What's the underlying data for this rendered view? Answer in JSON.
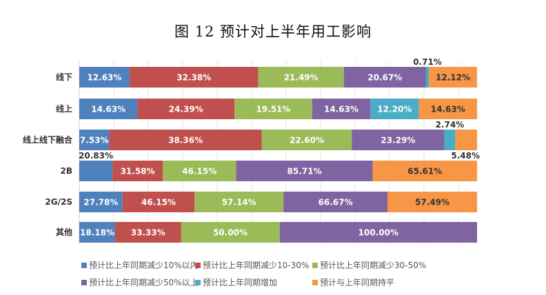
{
  "chart_data": {
    "type": "bar",
    "orientation": "horizontal",
    "stacked": true,
    "normalized": true,
    "title": "图 12  预计对上半年用工影响",
    "categories": [
      "线下",
      "线上",
      "线上线下融合",
      "2B",
      "2G/2S",
      "其他"
    ],
    "series": [
      {
        "name": "预计比上年同期减少10%以内",
        "color": "#4f81bd",
        "values": [
          12.63,
          14.63,
          7.53,
          20.83,
          27.78,
          18.18
        ]
      },
      {
        "name": "预计比上年同期减少10-30%",
        "color": "#c0504d",
        "values": [
          32.38,
          24.39,
          38.36,
          31.58,
          46.15,
          33.33
        ]
      },
      {
        "name": "预计比上年同期减少30-50%",
        "color": "#9bbb59",
        "values": [
          21.49,
          19.51,
          22.6,
          46.15,
          57.14,
          50.0
        ]
      },
      {
        "name": "预计比上年同期减少50%以上",
        "color": "#8064a2",
        "values": [
          20.67,
          14.63,
          23.29,
          85.71,
          66.67,
          100.0
        ]
      },
      {
        "name": "预计比上年同期增加",
        "color": "#4bacc6",
        "values": [
          0.71,
          12.2,
          2.74,
          null,
          null,
          null
        ]
      },
      {
        "name": "预计与上年同期持平",
        "color": "#f79646",
        "values": [
          12.12,
          14.63,
          5.48,
          65.61,
          57.49,
          null
        ]
      }
    ],
    "labels": [
      [
        "12.63%",
        "32.38%",
        "21.49%",
        "20.67%",
        "0.71%",
        "12.12%"
      ],
      [
        "14.63%",
        "24.39%",
        "19.51%",
        "14.63%",
        "12.20%",
        "14.63%"
      ],
      [
        "7.53%",
        "38.36%",
        "22.60%",
        "23.29%",
        "2.74%",
        "5.48%"
      ],
      [
        "20.83%",
        "31.58%",
        "46.15%",
        "85.71%",
        "",
        "65.61%"
      ],
      [
        "27.78%",
        "46.15%",
        "57.14%",
        "66.67%",
        "",
        "57.49%"
      ],
      [
        "18.18%",
        "33.33%",
        "50.00%",
        "100.00%",
        "",
        ""
      ]
    ],
    "grid": true,
    "legend_position": "bottom"
  }
}
